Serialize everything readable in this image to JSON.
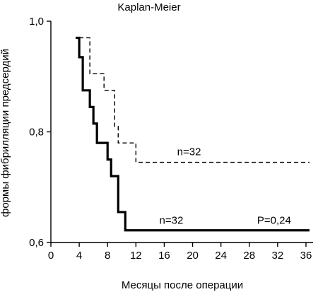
{
  "chart_data": {
    "type": "line",
    "title": "Kaplan-Meier",
    "xlabel": "Месяцы после операции",
    "ylabel": "формы фибрилляции предсердий",
    "xlim": [
      0,
      37
    ],
    "ylim": [
      0.6,
      1.0
    ],
    "x_ticks": [
      0,
      4,
      8,
      12,
      16,
      20,
      24,
      28,
      32,
      36
    ],
    "x_tick_labels": [
      "0",
      "4",
      "8",
      "12",
      "16",
      "20",
      "24",
      "28",
      "32",
      "36"
    ],
    "y_ticks": [
      0.6,
      0.8,
      1.0
    ],
    "y_tick_labels": [
      "0,6",
      "0,8",
      "1,0"
    ],
    "grid": false,
    "series": [
      {
        "style": "solid",
        "color": "#000000",
        "step_points": [
          [
            3.5,
            0.97
          ],
          [
            4.0,
            0.97
          ],
          [
            4.0,
            0.935
          ],
          [
            4.5,
            0.935
          ],
          [
            4.5,
            0.875
          ],
          [
            5.5,
            0.875
          ],
          [
            5.5,
            0.845
          ],
          [
            6.0,
            0.845
          ],
          [
            6.0,
            0.815
          ],
          [
            6.5,
            0.815
          ],
          [
            6.5,
            0.78
          ],
          [
            8.0,
            0.78
          ],
          [
            8.0,
            0.75
          ],
          [
            8.5,
            0.75
          ],
          [
            8.5,
            0.72
          ],
          [
            9.5,
            0.72
          ],
          [
            9.5,
            0.655
          ],
          [
            10.5,
            0.655
          ],
          [
            10.5,
            0.622
          ],
          [
            36.5,
            0.622
          ]
        ]
      },
      {
        "style": "dashed",
        "color": "#000000",
        "step_points": [
          [
            4.0,
            0.97
          ],
          [
            5.5,
            0.97
          ],
          [
            5.5,
            0.905
          ],
          [
            7.5,
            0.905
          ],
          [
            7.5,
            0.875
          ],
          [
            9.0,
            0.875
          ],
          [
            9.0,
            0.81
          ],
          [
            9.5,
            0.81
          ],
          [
            9.5,
            0.78
          ],
          [
            12.0,
            0.78
          ],
          [
            12.0,
            0.745
          ],
          [
            36.5,
            0.745
          ]
        ]
      }
    ],
    "annotations": [
      {
        "text": "n=32",
        "x": 19.5,
        "y": 0.758
      },
      {
        "text": "n=32",
        "x": 17.0,
        "y": 0.634
      },
      {
        "text": "P=0,24",
        "x": 31.5,
        "y": 0.634
      }
    ]
  }
}
